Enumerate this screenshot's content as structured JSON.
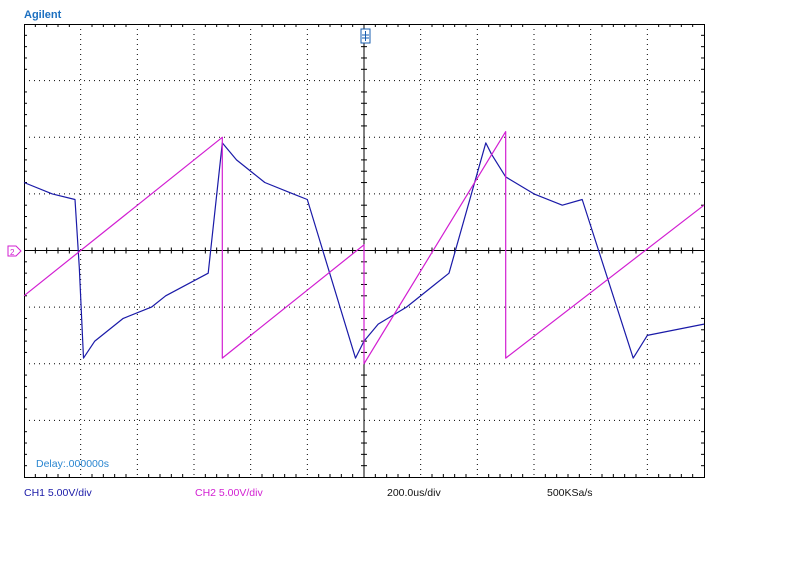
{
  "header": {
    "brand": "Agilent"
  },
  "footer": {
    "ch1": "CH1 5.00V/div",
    "ch2": "CH2 5.00V/div",
    "timebase": "200.0us/div",
    "sample_rate": "500KSa/s"
  },
  "delay_label": "Delay:.000000s",
  "colors": {
    "ch1": "#1a1aa8",
    "ch2": "#d21fd2",
    "grid": "#000000",
    "brand": "#1b6fc0"
  },
  "chart_data": {
    "type": "line",
    "title": "",
    "xlabel": "",
    "ylabel": "",
    "xlim": [
      0,
      2.4
    ],
    "ylim": [
      -4,
      4
    ],
    "x_unit": "ms",
    "y_unit": "div",
    "grid": true,
    "series": [
      {
        "name": "CH1",
        "x": [
          0,
          0.1,
          0.18,
          0.195,
          0.21,
          0.25,
          0.35,
          0.45,
          0.5,
          0.65,
          0.7,
          0.75,
          0.85,
          0.95,
          1.0,
          1.17,
          1.2,
          1.25,
          1.35,
          1.45,
          1.5,
          1.63,
          1.65,
          1.7,
          1.8,
          1.9,
          1.97,
          2.15,
          2.2,
          2.4
        ],
        "y": [
          1.2,
          1.0,
          0.9,
          -0.3,
          -1.9,
          -1.6,
          -1.2,
          -1.0,
          -0.8,
          -0.4,
          1.9,
          1.6,
          1.2,
          1.0,
          0.9,
          -1.9,
          -1.6,
          -1.3,
          -1.0,
          -0.6,
          -0.4,
          1.9,
          1.7,
          1.3,
          1.0,
          0.8,
          0.9,
          -1.9,
          -1.5,
          -1.3
        ]
      },
      {
        "name": "CH2",
        "x": [
          0,
          0.7,
          0.7,
          1.2,
          1.2,
          1.7,
          1.7,
          2.4
        ],
        "y": [
          -0.8,
          2.0,
          -1.9,
          0.1,
          -2.0,
          2.1,
          -1.9,
          0.8
        ]
      }
    ]
  }
}
